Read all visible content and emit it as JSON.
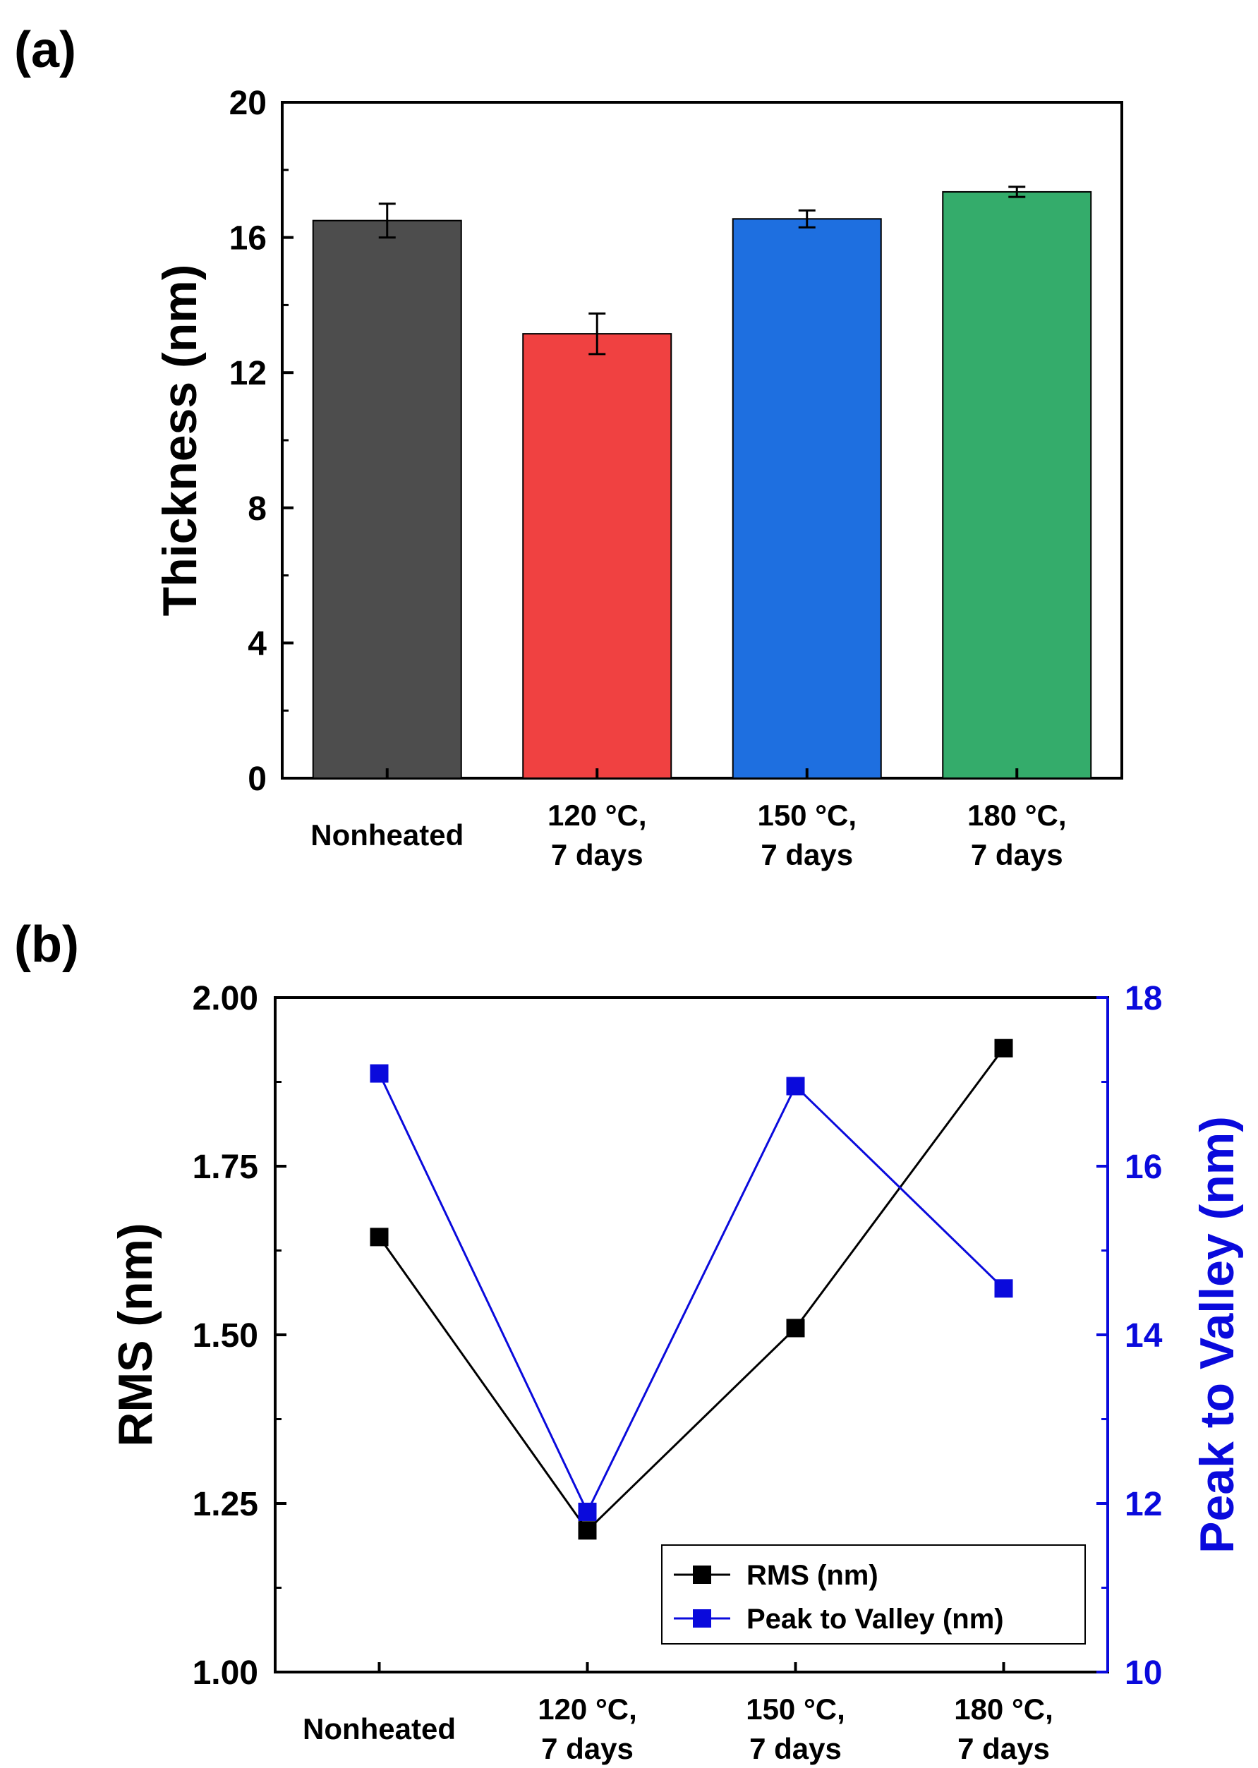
{
  "chart_data": [
    {
      "panel": "(a)",
      "type": "bar",
      "categories": [
        [
          "Nonheated"
        ],
        [
          "120 °C,",
          "7 days"
        ],
        [
          "150 °C,",
          "7 days"
        ],
        [
          "180 °C,",
          "7 days"
        ]
      ],
      "values": [
        16.5,
        13.15,
        16.55,
        17.35
      ],
      "errors": [
        0.5,
        0.6,
        0.25,
        0.15
      ],
      "colors": [
        "#4d4d4d",
        "#f04141",
        "#1e6fe0",
        "#34ac6b"
      ],
      "ylabel": "Thickness (nm)",
      "xlabel": "",
      "ylim": [
        0,
        20
      ],
      "yticks": [
        0,
        4,
        8,
        12,
        16,
        20
      ],
      "grid": false
    },
    {
      "panel": "(b)",
      "type": "line",
      "categories": [
        [
          "Nonheated"
        ],
        [
          "120 °C,",
          "7 days"
        ],
        [
          "150 °C,",
          "7 days"
        ],
        [
          "180 °C,",
          "7 days"
        ]
      ],
      "series": [
        {
          "name": "RMS (nm)",
          "axis": "left",
          "color": "#000000",
          "values": [
            1.645,
            1.21,
            1.51,
            1.925
          ]
        },
        {
          "name": "Peak to Valley (nm)",
          "axis": "right",
          "color": "#0a0adc",
          "values": [
            17.1,
            11.9,
            16.95,
            14.55
          ]
        }
      ],
      "ylabel": "RMS (nm)",
      "ylabel_right": "Peak to Valley (nm)",
      "ylim": [
        1.0,
        2.0
      ],
      "ylim_right": [
        10,
        18
      ],
      "yticks": [
        "1.00",
        "1.25",
        "1.50",
        "1.75",
        "2.00"
      ],
      "yticks_right": [
        "10",
        "12",
        "14",
        "16",
        "18"
      ],
      "legend_position": "bottom-right",
      "grid": false
    }
  ]
}
